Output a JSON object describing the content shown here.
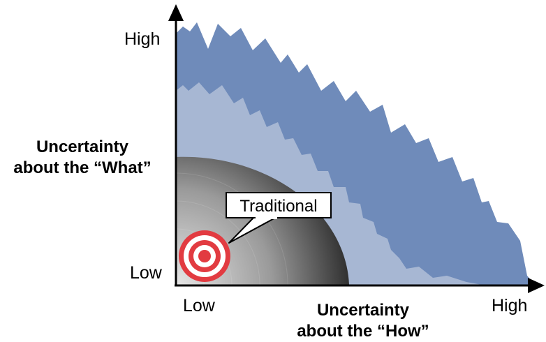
{
  "y_axis": {
    "title_line1": "Uncertainty",
    "title_line2": "about the “What”",
    "tick_high": "High",
    "tick_low": "Low"
  },
  "x_axis": {
    "title_line1": "Uncertainty",
    "title_line2": "about the “How”",
    "tick_low": "Low",
    "tick_high": "High"
  },
  "callout": {
    "label": "Traditional"
  },
  "colors": {
    "outer_zone": "#6f8bba",
    "middle_zone": "#a7b7d3",
    "inner_zone_dark": "#2e2e2e",
    "inner_zone_light": "#e6e6e6",
    "target_red": "#e23b41",
    "axis": "#000000"
  },
  "icons": {
    "target": "bullseye-icon"
  }
}
